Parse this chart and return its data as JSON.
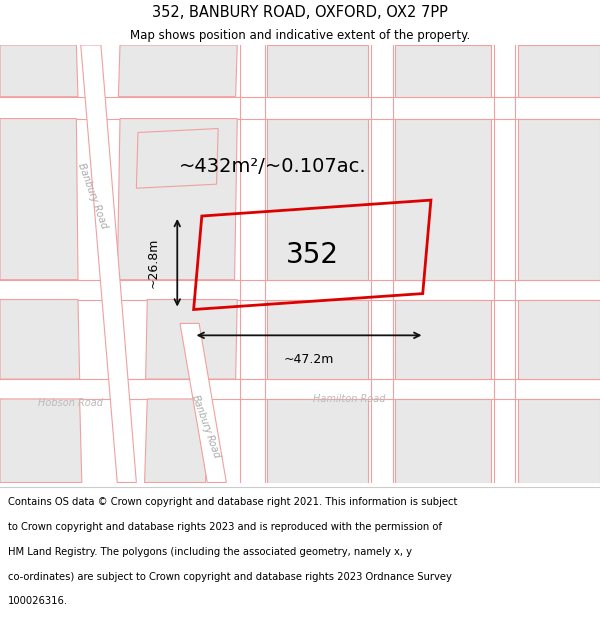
{
  "title": "352, BANBURY ROAD, OXFORD, OX2 7PP",
  "subtitle": "Map shows position and indicative extent of the property.",
  "title_fontsize": 10.5,
  "subtitle_fontsize": 8.5,
  "footer_fontsize": 7.2,
  "map_bg": "#ffffff",
  "block_fill": "#e8e8e8",
  "block_stroke": "#f0a0a0",
  "road_line": "#f0a0a0",
  "highlight_color": "#dd0000",
  "dim_color": "#111111",
  "area_text": "~432m²/~0.107ac.",
  "number_text": "352",
  "width_text": "~47.2m",
  "height_text": "~26.8m",
  "figsize": [
    6.0,
    6.25
  ],
  "dpi": 100,
  "footer_lines": [
    "Contains OS data © Crown copyright and database right 2021. This information is subject",
    "to Crown copyright and database rights 2023 and is reproduced with the permission of",
    "HM Land Registry. The polygons (including the associated geometry, namely x, y",
    "co-ordinates) are subject to Crown copyright and database rights 2023 Ordnance Survey",
    "100026316."
  ]
}
